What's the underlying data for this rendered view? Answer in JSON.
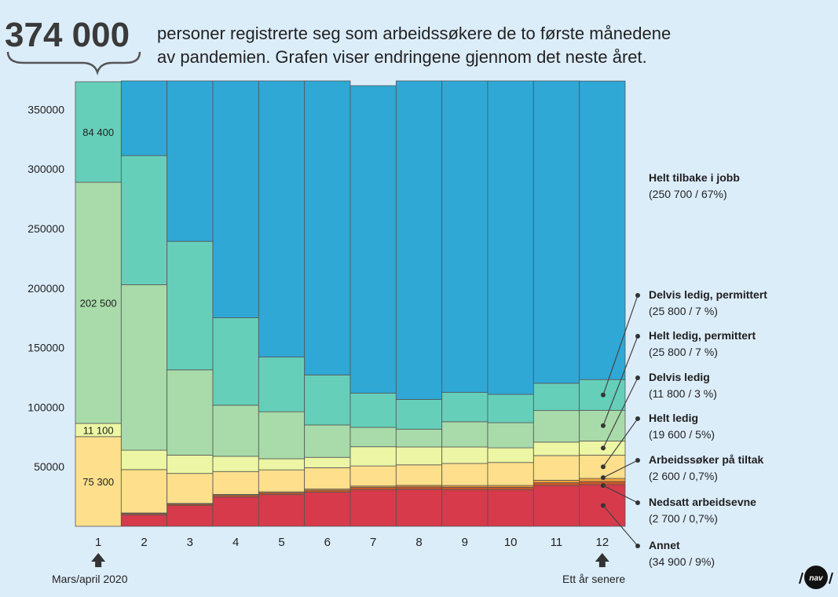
{
  "header": {
    "big_number": "374 000",
    "line1": "personer registrerte seg som arbeidssøkere de to første månedene",
    "line2": "av pandemien. Grafen viser endringene gjennom det neste året."
  },
  "x_notes": {
    "first": "Mars/april 2020",
    "last": "Ett år senere"
  },
  "colors": {
    "background": "#dcedfa",
    "Annet": "#d63a4b",
    "Nedsatt arbeidsevne": "#c9562a",
    "Arbeidssøker på tiltak": "#f2a23a",
    "Helt ledig": "#fddf8c",
    "Delvis ledig": "#ecf6a4",
    "Helt ledig, permittert": "#a8dba9",
    "Delvis ledig, permittert": "#66cfba",
    "Helt tilbake i jobb": "#2fa8d6"
  },
  "logo_text": "nav",
  "chart_data": {
    "type": "bar",
    "stacked": true,
    "categories": [
      "1",
      "2",
      "3",
      "4",
      "5",
      "6",
      "7",
      "8",
      "9",
      "10",
      "11",
      "12"
    ],
    "ylim": [
      0,
      374000
    ],
    "yticks": [
      "50000",
      "100000",
      "150000",
      "200000",
      "250000",
      "300000",
      "350000"
    ],
    "grid": false,
    "series": [
      {
        "name": "Annet",
        "values": [
          0,
          9600,
          17400,
          24600,
          26600,
          28600,
          30600,
          31100,
          30600,
          30600,
          34200,
          34900
        ]
      },
      {
        "name": "Nedsatt arbeidsevne",
        "values": [
          0,
          1100,
          1200,
          1400,
          1500,
          1700,
          2000,
          2000,
          2200,
          2200,
          2400,
          2700
        ]
      },
      {
        "name": "Arbeidssøker på tiltak",
        "values": [
          0,
          500,
          600,
          800,
          900,
          1000,
          1200,
          1300,
          1400,
          1500,
          2100,
          2600
        ]
      },
      {
        "name": "Helt ledig",
        "values": [
          75300,
          36400,
          25200,
          19200,
          18400,
          17900,
          16900,
          17200,
          18600,
          19300,
          20700,
          19600
        ]
      },
      {
        "name": "Delvis ledig",
        "values": [
          11100,
          16300,
          15400,
          12800,
          9300,
          8700,
          16100,
          15000,
          13800,
          12300,
          11300,
          11800
        ]
      },
      {
        "name": "Helt ledig, permittert",
        "values": [
          202500,
          138900,
          71600,
          42900,
          39500,
          27200,
          16300,
          15000,
          21200,
          21100,
          26500,
          25800
        ]
      },
      {
        "name": "Delvis ledig, permittert",
        "values": [
          84400,
          108500,
          107900,
          73500,
          45900,
          42000,
          28700,
          24900,
          24600,
          23800,
          22900,
          25800
        ]
      },
      {
        "name": "Helt tilbake i jobb",
        "values": [
          0,
          62700,
          134700,
          198800,
          231900,
          246900,
          258200,
          267500,
          261600,
          263200,
          253900,
          250700
        ]
      }
    ],
    "bar_labels": [
      {
        "series": "Delvis ledig, permittert",
        "category": "1",
        "text": "84 400"
      },
      {
        "series": "Helt ledig, permittert",
        "category": "1",
        "text": "202 500"
      },
      {
        "series": "Delvis ledig",
        "category": "1",
        "text": "11 100"
      },
      {
        "series": "Helt ledig",
        "category": "1",
        "text": "75 300"
      }
    ],
    "annotations": [
      {
        "series": "Helt tilbake i jobb",
        "title": "Helt tilbake i jobb",
        "detail": "(250 700 / 67%)"
      },
      {
        "series": "Delvis ledig, permittert",
        "title": "Delvis ledig, permittert",
        "detail": "(25 800 / 7 %)"
      },
      {
        "series": "Helt ledig, permittert",
        "title": "Helt ledig, permittert",
        "detail": "(25 800 / 7 %)"
      },
      {
        "series": "Delvis ledig",
        "title": "Delvis ledig",
        "detail": "(11 800 / 3 %)"
      },
      {
        "series": "Helt ledig",
        "title": "Helt ledig",
        "detail": "(19 600 / 5%)"
      },
      {
        "series": "Arbeidssøker på tiltak",
        "title": "Arbeidssøker på tiltak",
        "detail": "(2 600 / 0,7%)"
      },
      {
        "series": "Nedsatt arbeidsevne",
        "title": "Nedsatt arbeidsevne",
        "detail": "(2 700 / 0,7%)"
      },
      {
        "series": "Annet",
        "title": "Annet",
        "detail": "(34 900 / 9%)"
      }
    ]
  }
}
